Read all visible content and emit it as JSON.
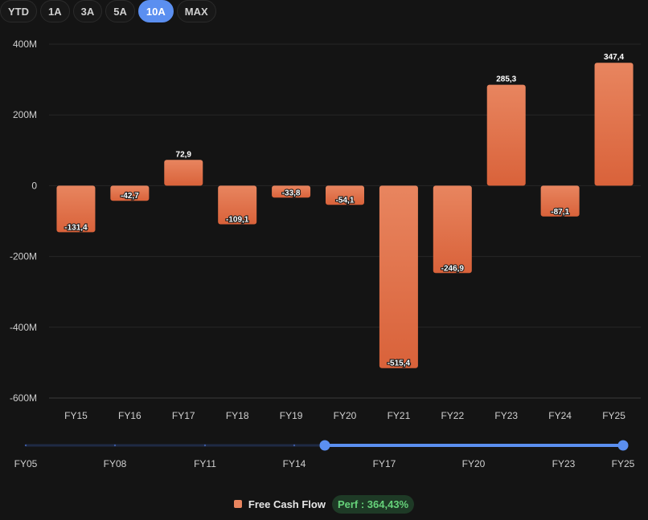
{
  "range_selector": {
    "options": [
      "YTD",
      "1A",
      "3A",
      "5A",
      "10A",
      "MAX"
    ],
    "active": "10A"
  },
  "colors": {
    "background": "#141414",
    "bar_top": "#e8855f",
    "bar_bottom": "#d9623a",
    "accent": "#5b8ff0",
    "perf_text": "#66d27a",
    "perf_bg": "#1e3a26"
  },
  "chart_data": {
    "type": "bar",
    "categories": [
      "FY15",
      "FY16",
      "FY17",
      "FY18",
      "FY19",
      "FY20",
      "FY21",
      "FY22",
      "FY23",
      "FY24",
      "FY25"
    ],
    "series": [
      {
        "name": "Free Cash Flow",
        "values": [
          -131.4,
          -42.7,
          72.9,
          -109.1,
          -33.8,
          -54.1,
          -515.4,
          -246.9,
          285.3,
          -87.1,
          347.4
        ],
        "labels": [
          "-131,4",
          "-42,7",
          "72,9",
          "-109,1",
          "-33,8",
          "-54,1",
          "-515,4",
          "-246,9",
          "285,3",
          "-87,1",
          "347,4"
        ]
      }
    ],
    "yticks": [
      400,
      200,
      0,
      -200,
      -400,
      -600
    ],
    "ytick_labels": [
      "400M",
      "200M",
      "0",
      "-200M",
      "-400M",
      "-600M"
    ],
    "ylim": [
      -600,
      400
    ],
    "grid": true,
    "navigator": {
      "labels": [
        "FY05",
        "FY08",
        "FY11",
        "FY14",
        "FY17",
        "FY20",
        "FY23",
        "FY25"
      ],
      "selected_from": "FY15",
      "selected_to": "FY25"
    }
  },
  "legend": {
    "series_name": "Free Cash Flow",
    "perf_text": "Perf : 364,43%"
  }
}
